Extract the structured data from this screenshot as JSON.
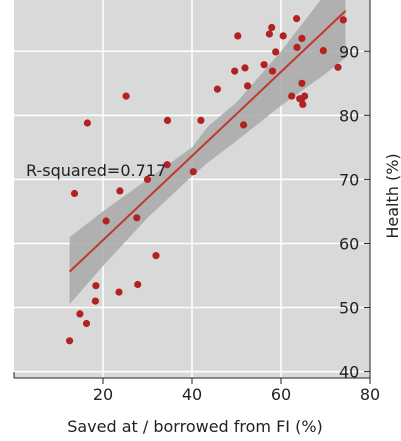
{
  "chart_data": {
    "type": "scatter",
    "title": "",
    "xlabel": "Saved at / borrowed from FI (%)",
    "ylabel": "Health (%)",
    "xlim": [
      0,
      80
    ],
    "ylim": [
      39,
      98
    ],
    "xticks": [
      20,
      40,
      60,
      80
    ],
    "yticks": [
      40,
      50,
      60,
      70,
      80,
      90
    ],
    "y_axis_position": "right",
    "panel_background": "#d9d9d9",
    "grid": true,
    "grid_color": "#ffffff",
    "point_color": "#b22222",
    "fit_line_color": "#c0392b",
    "ci_band_color": "#a8a8a8",
    "annotation": "R-squared=0.717",
    "fit": {
      "x": [
        12.5,
        74.5
      ],
      "y": [
        55.6,
        96.3
      ]
    },
    "ci_band": {
      "x": [
        12.5,
        20,
        30,
        40,
        43.5,
        50,
        60,
        70,
        74.5
      ],
      "lower": [
        50.5,
        56.5,
        64.0,
        70.5,
        72.6,
        76.0,
        81.5,
        86.5,
        89.0
      ],
      "upper": [
        61.0,
        65.0,
        70.0,
        75.0,
        78.2,
        82.0,
        90.0,
        99.0,
        103.0
      ]
    },
    "points": {
      "x": [
        12.5,
        13.6,
        14.8,
        16.3,
        16.5,
        18.3,
        18.4,
        20.7,
        23.6,
        23.8,
        25.2,
        27.8,
        27.6,
        30.0,
        31.9,
        34.5,
        34.4,
        40.3,
        42.0,
        45.7,
        49.6,
        50.3,
        51.6,
        51.9,
        52.5,
        56.2,
        57.4,
        57.9,
        58.1,
        58.8,
        60.5,
        62.4,
        63.6,
        63.5,
        64.2,
        64.6,
        64.7,
        64.7,
        65.3,
        64.9,
        69.5,
        72.8,
        74.0
      ],
      "y": [
        44.8,
        67.8,
        49.0,
        47.5,
        78.8,
        51.0,
        53.4,
        63.5,
        52.4,
        68.2,
        83.0,
        53.6,
        64.0,
        70.0,
        58.1,
        79.2,
        72.3,
        71.2,
        79.2,
        84.1,
        86.9,
        92.4,
        78.5,
        87.4,
        84.6,
        87.9,
        92.7,
        93.7,
        86.9,
        89.9,
        92.4,
        83.0,
        90.6,
        95.1,
        82.6,
        82.5,
        92.0,
        85.0,
        83.0,
        81.7,
        90.1,
        87.5,
        94.9
      ]
    }
  }
}
